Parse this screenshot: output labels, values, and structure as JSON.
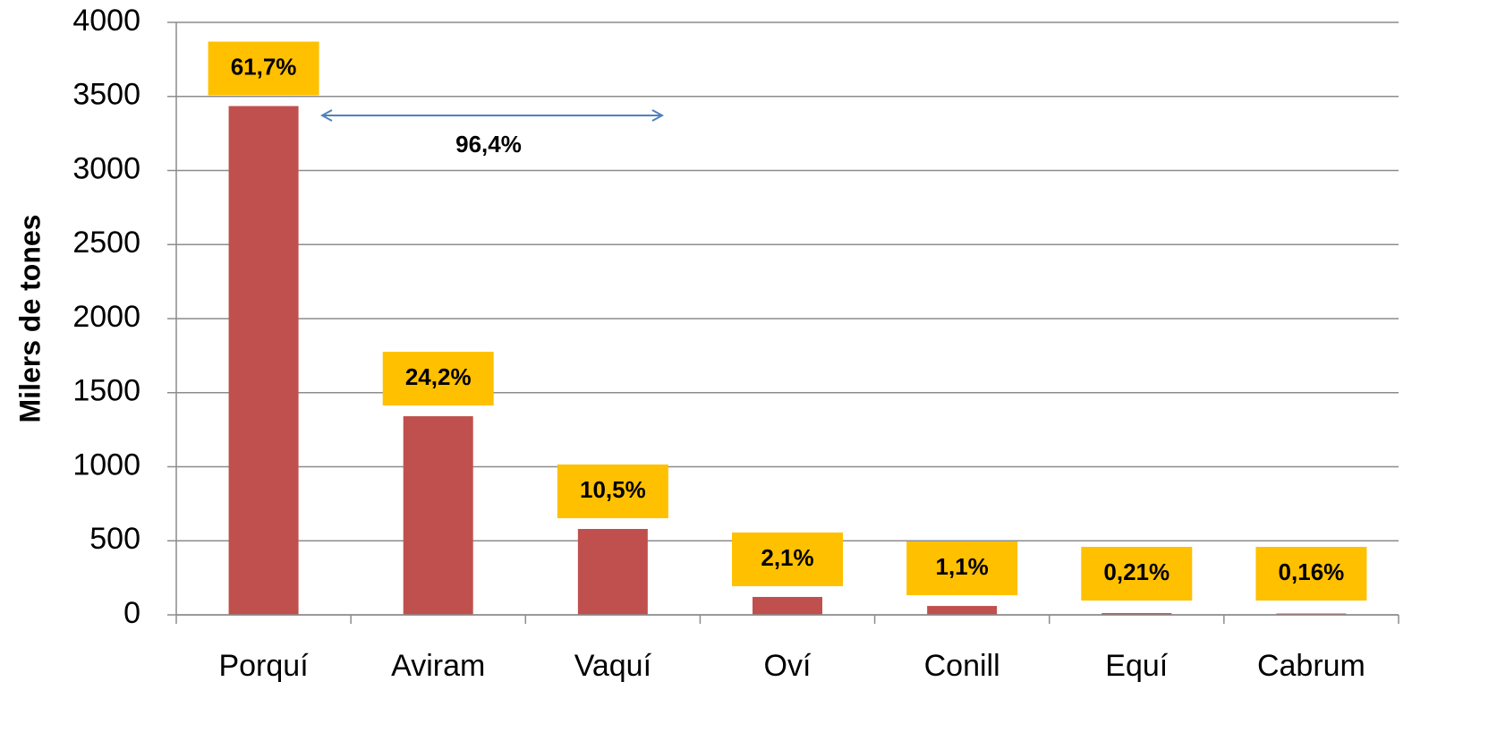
{
  "chart_data": {
    "type": "bar",
    "y_label": "Milers de tones",
    "categories": [
      "Porquí",
      "Aviram",
      "Vaquí",
      "Oví",
      "Conill",
      "Equí",
      "Cabrum"
    ],
    "values": [
      3435,
      1341,
      580,
      121,
      60,
      12,
      9
    ],
    "color": "#c0504d",
    "share_labels": [
      "61,7%",
      "24,2%",
      "10,5%",
      "2,1%",
      "1,1%",
      "0,21%",
      "0,16%"
    ],
    "share_label_color": "#ffc000",
    "arrow_annotation": "96,4%",
    "ylim": [
      0,
      4000
    ],
    "yticks": [
      0,
      500,
      1000,
      1500,
      2000,
      2500,
      3000,
      3500,
      4000
    ],
    "grid": true
  }
}
